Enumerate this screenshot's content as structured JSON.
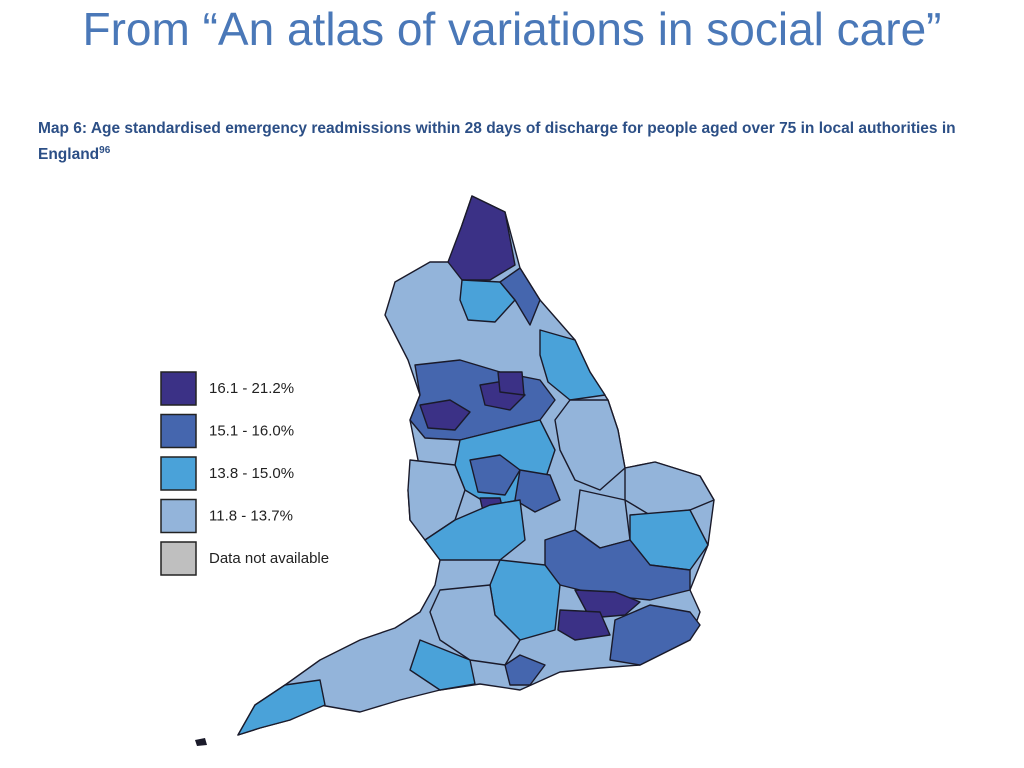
{
  "title": "From “An atlas of variations in social care”",
  "map": {
    "caption": "Map 6: Age standardised emergency readmissions within 28 days of discharge for people aged over 75 in local authorities in England",
    "caption_ref": "96",
    "legend": [
      {
        "label": "16.1 - 21.2%",
        "color": "#3b3186"
      },
      {
        "label": "15.1 - 16.0%",
        "color": "#4566ae"
      },
      {
        "label": "13.8 - 15.0%",
        "color": "#4aa2d9"
      },
      {
        "label": "11.8 - 13.7%",
        "color": "#93b4da"
      },
      {
        "label": "Data not available",
        "color": "#bfbfbf"
      }
    ]
  }
}
